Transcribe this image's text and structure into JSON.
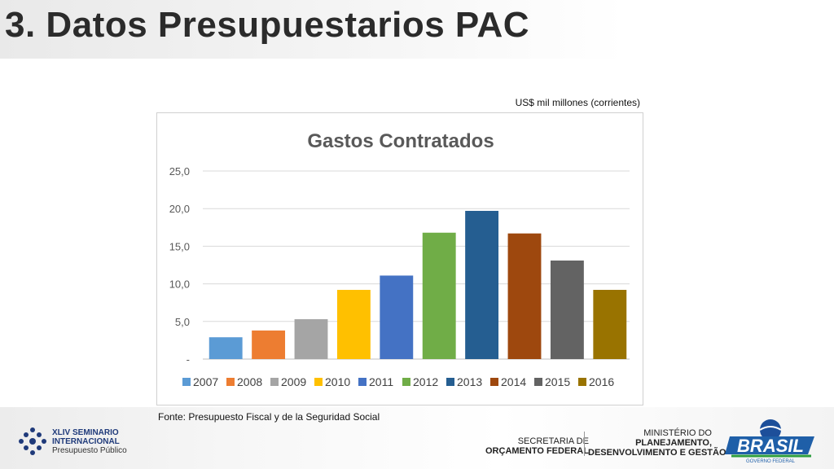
{
  "slide": {
    "title": "3. Datos Presupuestarios PAC",
    "units_note": "US$ mil millones (corrientes)",
    "source_note": "Fonte: Presupuesto Fiscal y de la Seguridad Social"
  },
  "footer": {
    "seminar_line1": "XLIV SEMINARIO",
    "seminar_line2": "INTERNACIONAL",
    "seminar_line3": "Presupuesto Público",
    "secretaria_line1": "SECRETARIA DE",
    "secretaria_line2": "ORÇAMENTO FEDERAL",
    "ministerio_line1": "MINISTÉRIO DO",
    "ministerio_line2": "PLANEJAMENTO,",
    "ministerio_line3": "DESENVOLVIMENTO E GESTÃO",
    "brasil_text": "BRASIL",
    "brasil_sub": "GOVERNO FEDERAL"
  },
  "chart_data": {
    "type": "bar",
    "title": "Gastos Contratados",
    "categories": [
      "2007",
      "2008",
      "2009",
      "2010",
      "2011",
      "2012",
      "2013",
      "2014",
      "2015",
      "2016"
    ],
    "values": [
      2.9,
      3.8,
      5.3,
      9.2,
      11.1,
      16.8,
      19.7,
      16.7,
      13.1,
      9.2
    ],
    "colors": [
      "#5b9bd5",
      "#ed7d31",
      "#a5a5a5",
      "#ffc000",
      "#4472c4",
      "#70ad47",
      "#255e91",
      "#9e480e",
      "#636363",
      "#997300"
    ],
    "ylim": [
      0,
      25
    ],
    "y_ticks": [
      0,
      5,
      10,
      15,
      20,
      25
    ],
    "y_tick_labels": [
      "-",
      "5,0",
      "10,0",
      "15,0",
      "20,0",
      "25,0"
    ],
    "xlabel": "",
    "ylabel": "",
    "grid": true,
    "legend": "bottom"
  }
}
